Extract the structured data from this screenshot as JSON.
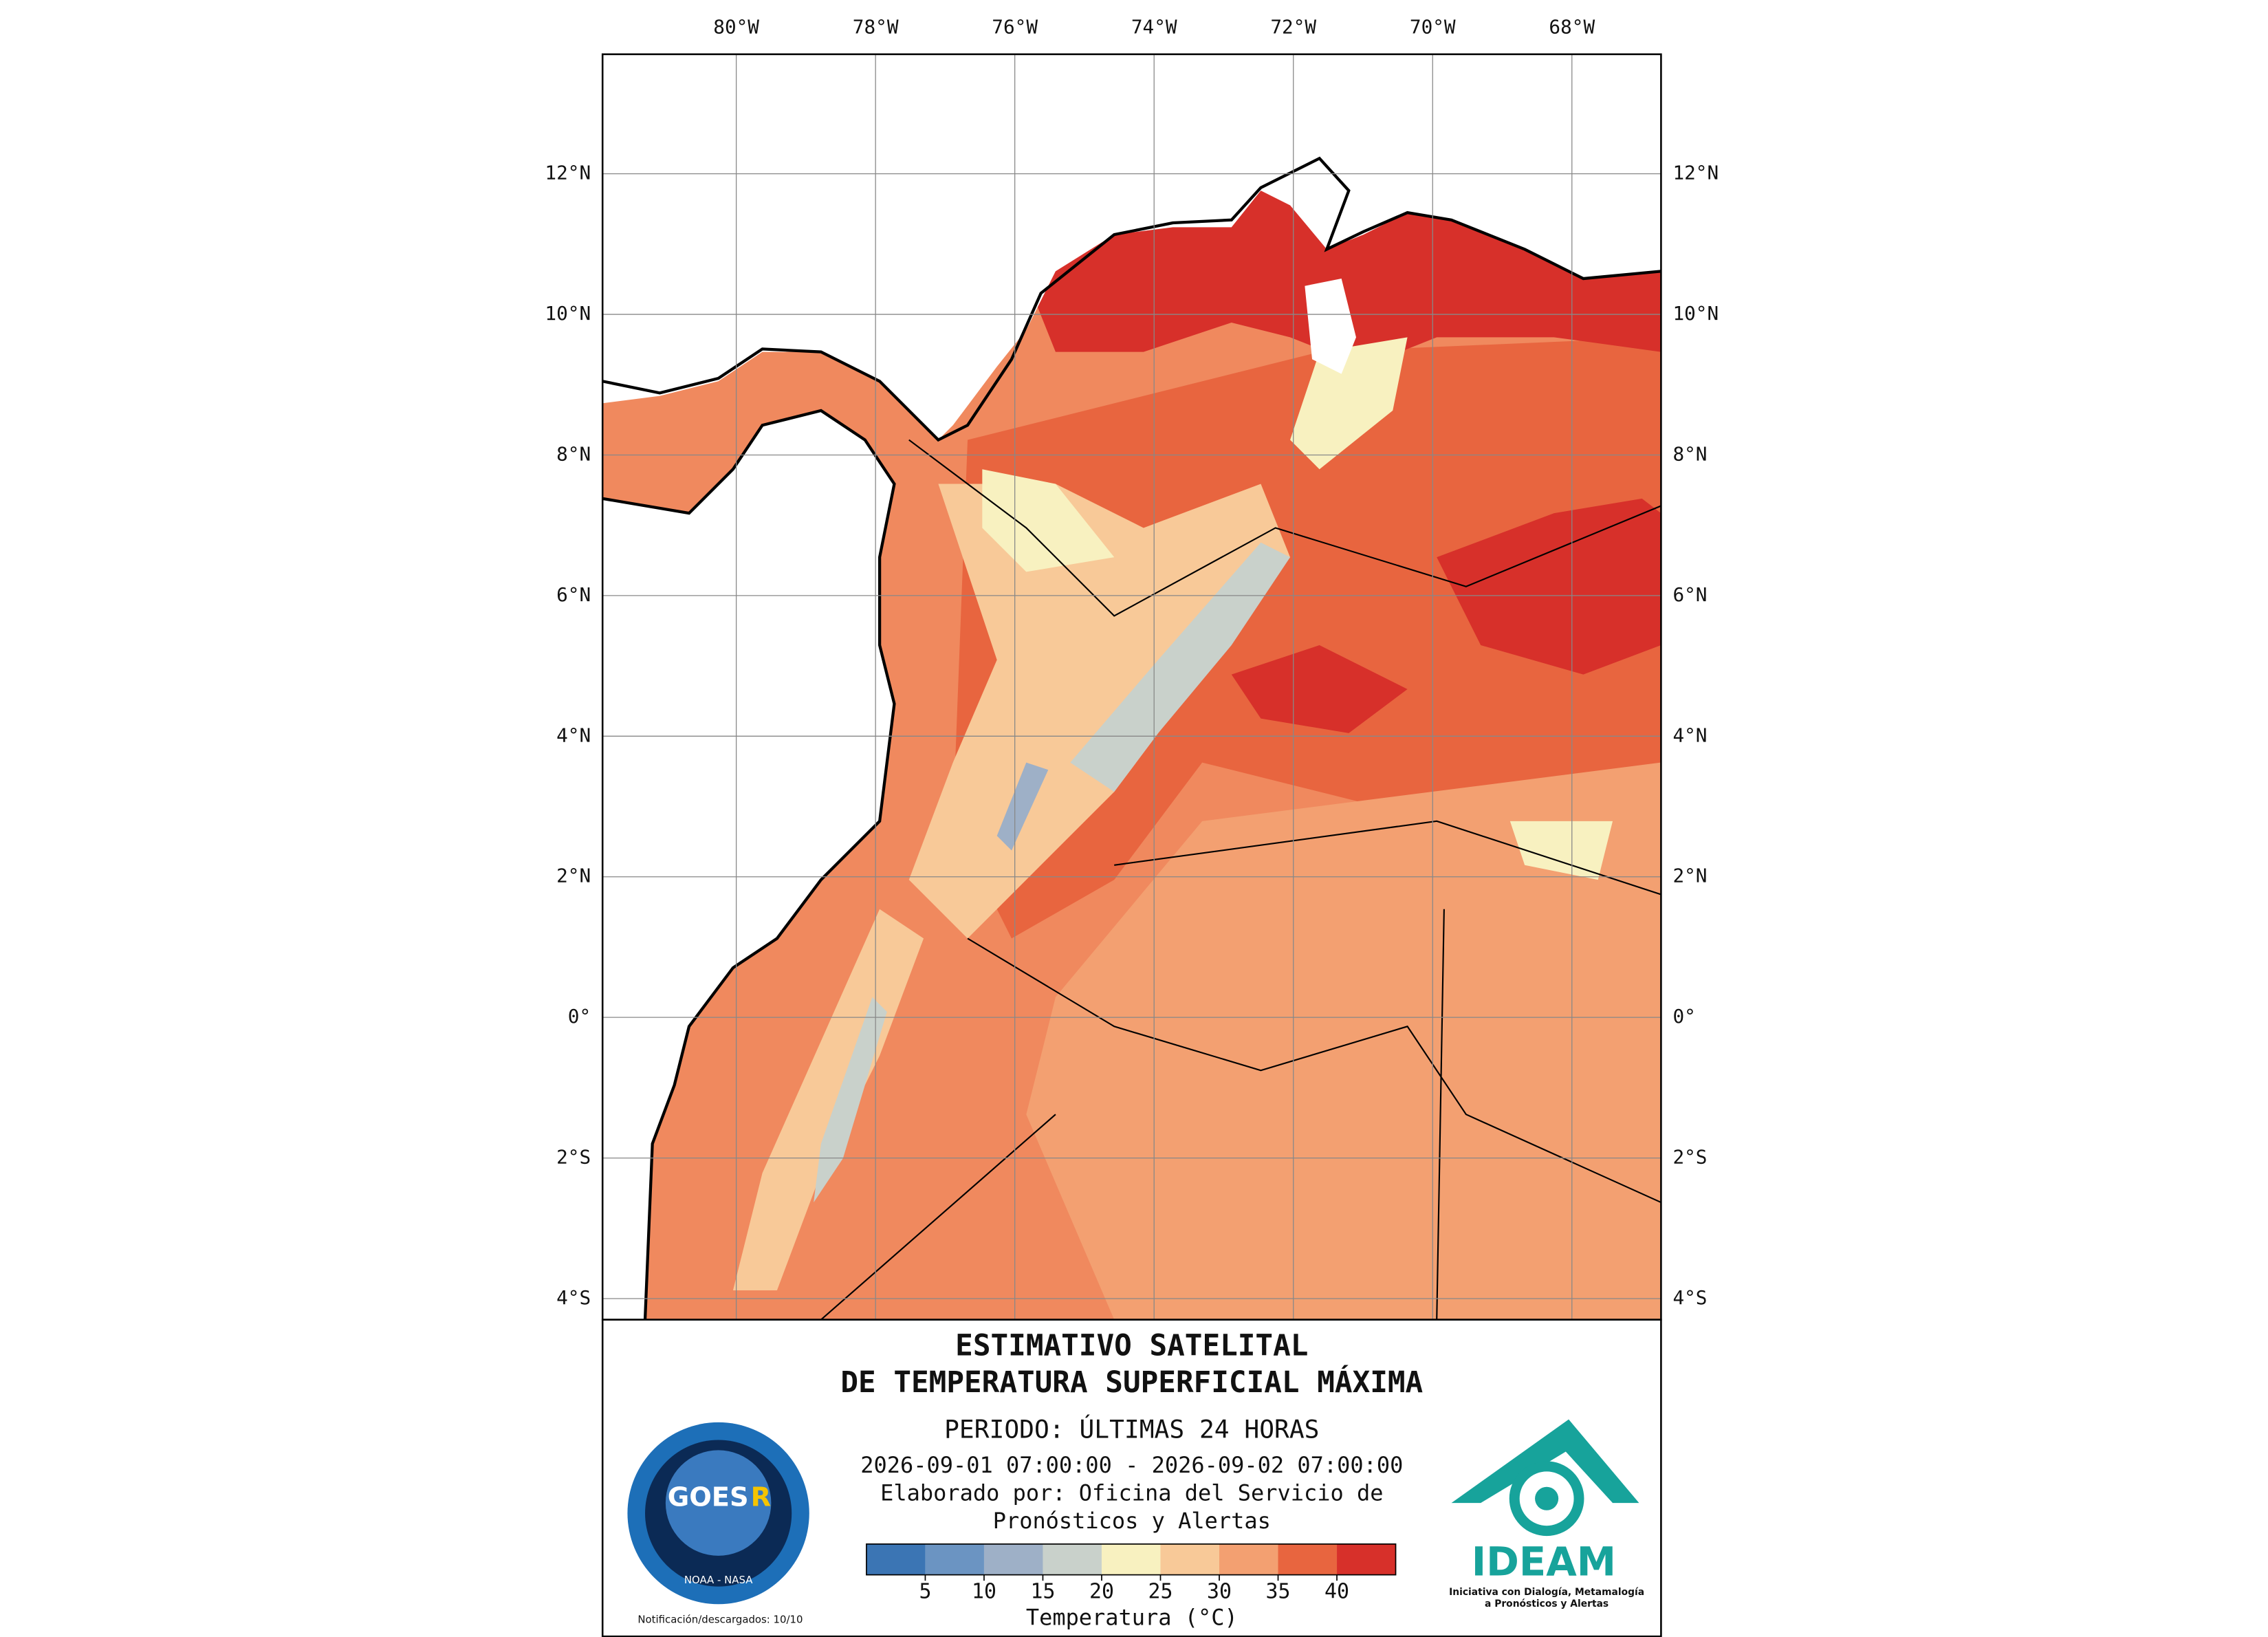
{
  "map": {
    "xlim": [
      -81.92,
      -66.72
    ],
    "ylim": [
      -4.3,
      13.7
    ],
    "xticks": [
      {
        "value": -80,
        "label": "80°W"
      },
      {
        "value": -78,
        "label": "78°W"
      },
      {
        "value": -76,
        "label": "76°W"
      },
      {
        "value": -74,
        "label": "74°W"
      },
      {
        "value": -72,
        "label": "72°W"
      },
      {
        "value": -70,
        "label": "70°W"
      },
      {
        "value": -68,
        "label": "68°W"
      }
    ],
    "yticks": [
      {
        "value": 12,
        "label": "12°N"
      },
      {
        "value": 10,
        "label": "10°N"
      },
      {
        "value": 8,
        "label": "8°N"
      },
      {
        "value": 6,
        "label": "6°N"
      },
      {
        "value": 4,
        "label": "4°N"
      },
      {
        "value": 2,
        "label": "2°N"
      },
      {
        "value": 0,
        "label": "0°"
      },
      {
        "value": -2,
        "label": "2°S"
      },
      {
        "value": -4,
        "label": "4°S"
      }
    ]
  },
  "panel": {
    "title_line1": "ESTIMATIVO SATELITAL",
    "title_line2": "DE TEMPERATURA SUPERFICIAL MÁXIMA",
    "period": "PERIODO: ÚLTIMAS 24 HORAS",
    "date_range": "2026-09-01 07:00:00 - 2026-09-02 07:00:00",
    "credit_line1": "Elaborado por: Oficina del Servicio de",
    "credit_line2": "Pronósticos y Alertas",
    "notice": "Notificación/descargados: 10/10"
  },
  "colorbar": {
    "range": [
      0,
      45
    ],
    "ticks": [
      5,
      10,
      15,
      20,
      25,
      30,
      35,
      40
    ],
    "colors": [
      "#3b75b4",
      "#6b94c2",
      "#9eb0c7",
      "#c9d1cb",
      "#f8f1c0",
      "#f8c998",
      "#f3a071",
      "#e8653f",
      "#d7302a"
    ],
    "label": "Temperatura (°C)"
  },
  "logos": {
    "goes": "GOES",
    "goes_r": "R",
    "goes_agency": "NOAA - NASA",
    "ideam": "IDEAM",
    "ideam_line1": "Iniciativa con Dialogía, Metamalogía",
    "ideam_line2": "a Pronósticos y Alertas"
  }
}
